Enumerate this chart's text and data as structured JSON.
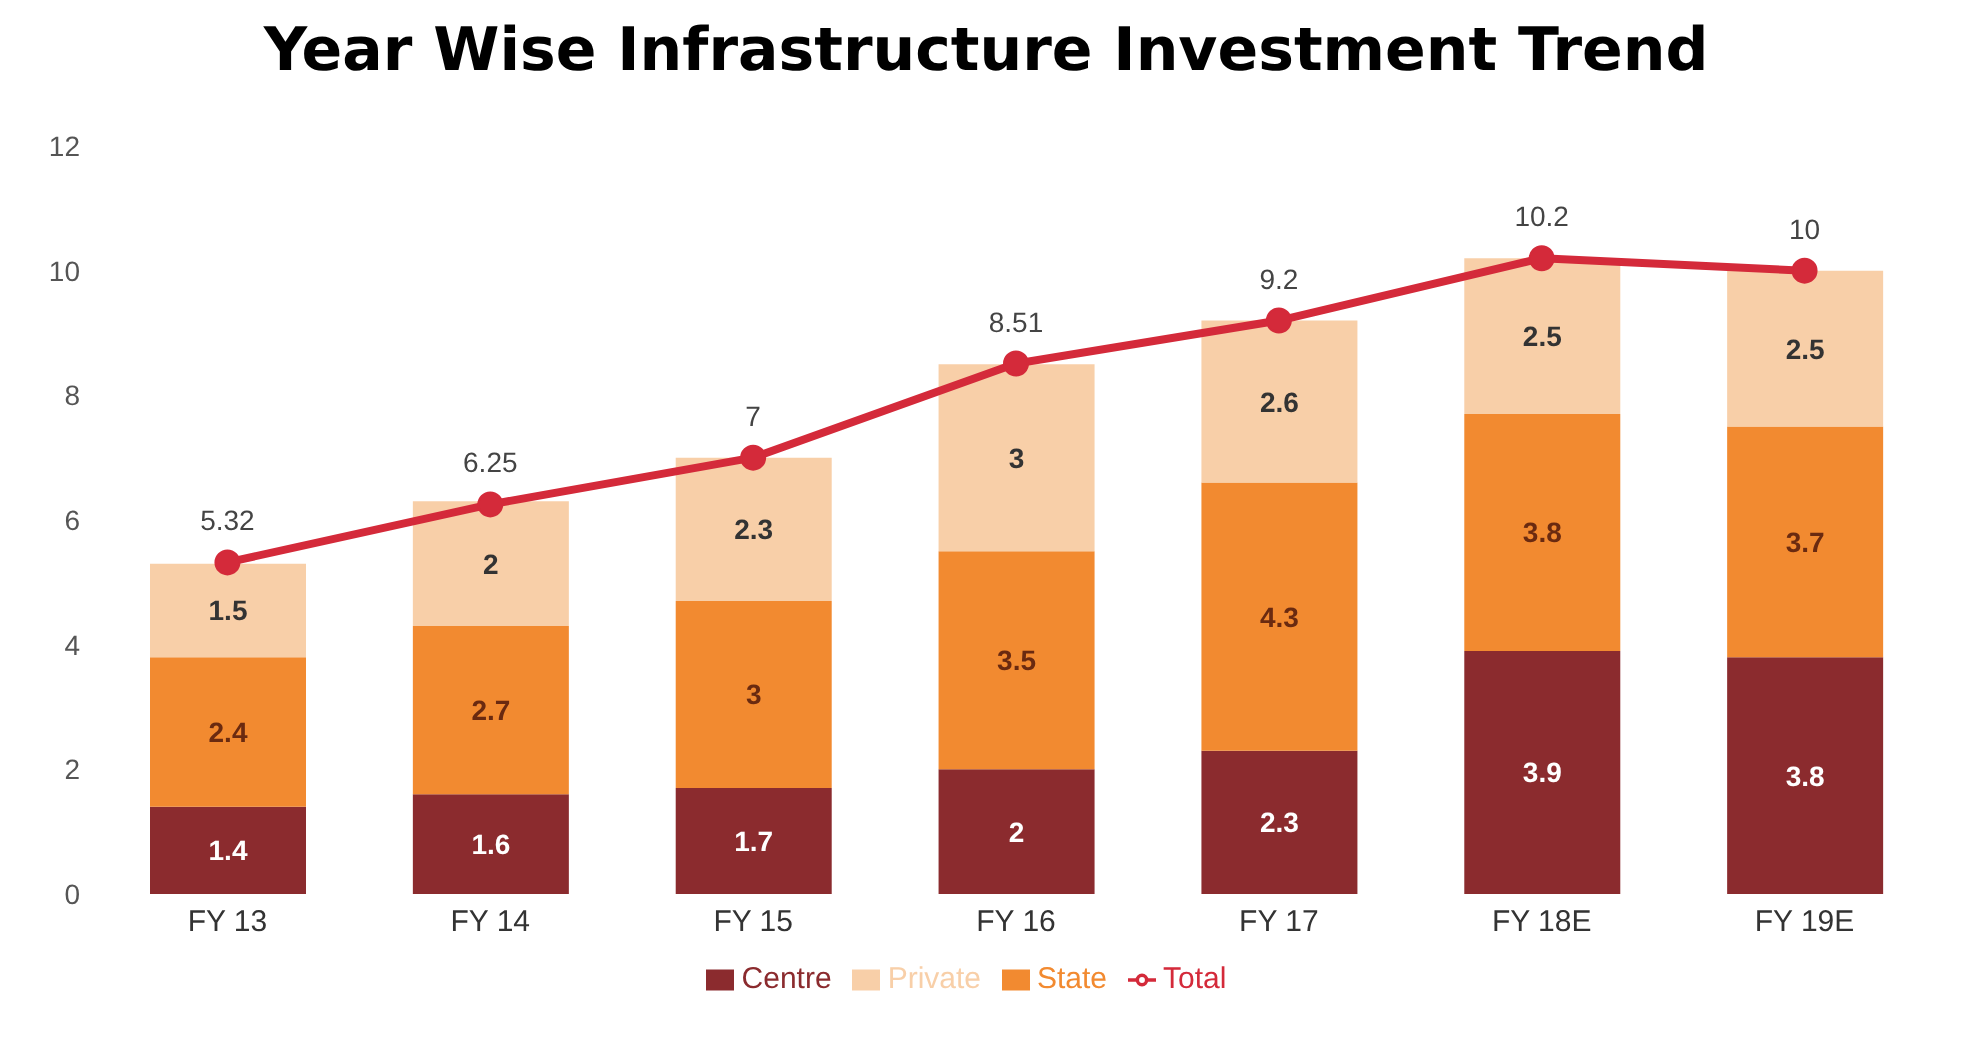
{
  "chart_data": {
    "type": "bar",
    "title": "Year Wise Infrastructure Investment Trend",
    "stacked": true,
    "categories": [
      "FY 13",
      "FY 14",
      "FY 15",
      "FY 16",
      "FY 17",
      "FY 18E",
      "FY 19E"
    ],
    "series": [
      {
        "name": "Centre",
        "color": "#8b2b2e",
        "values": [
          1.4,
          1.6,
          1.7,
          2,
          2.3,
          3.9,
          3.8
        ]
      },
      {
        "name": "State",
        "color": "#f28a30",
        "values": [
          2.4,
          2.7,
          3,
          3.5,
          4.3,
          3.8,
          3.7
        ]
      },
      {
        "name": "Private",
        "color": "#f8cfa8",
        "values": [
          1.5,
          2,
          2.3,
          3,
          2.6,
          2.5,
          2.5
        ]
      },
      {
        "name": "Total",
        "type": "line",
        "color": "#d42a3a",
        "values": [
          5.32,
          6.25,
          7,
          8.51,
          9.2,
          10.2,
          10
        ]
      }
    ],
    "ylim": [
      0,
      12
    ],
    "yticks": [
      0,
      2,
      4,
      6,
      8,
      10,
      12
    ],
    "grid": false,
    "legend": "bottom",
    "data_labels": true,
    "marker": "circle",
    "line_style": "solid"
  }
}
